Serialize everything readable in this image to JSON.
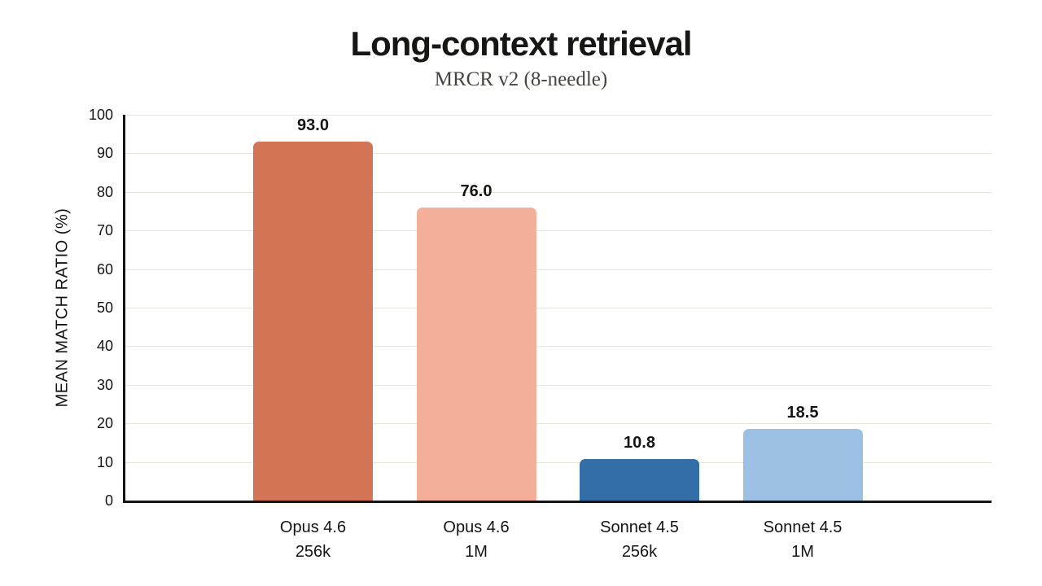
{
  "chart_data": {
    "type": "bar",
    "title": "Long-context retrieval",
    "subtitle": "MRCR v2 (8-needle)",
    "ylabel": "MEAN MATCH RATIO (%)",
    "xlabel": "",
    "categories": [
      [
        "Opus 4.6",
        "256k"
      ],
      [
        "Opus 4.6",
        "1M"
      ],
      [
        "Sonnet 4.5",
        "256k"
      ],
      [
        "Sonnet 4.5",
        "1M"
      ]
    ],
    "values": [
      93.0,
      76.0,
      10.8,
      18.5
    ],
    "value_labels": [
      "93.0",
      "76.0",
      "10.8",
      "18.5"
    ],
    "bar_colors": [
      "#d47457",
      "#f3af9a",
      "#336ea6",
      "#9cc0e3"
    ],
    "ylim": [
      0,
      100
    ],
    "yticks": [
      0,
      10,
      20,
      30,
      40,
      50,
      60,
      70,
      80,
      90,
      100
    ],
    "grid": "horizontal",
    "gridline_color": "#e8e4d7",
    "axis_color": "#141413",
    "text_color": "#141413",
    "subtitle_color": "#45453f",
    "legend": "none",
    "background": "#ffffff"
  }
}
